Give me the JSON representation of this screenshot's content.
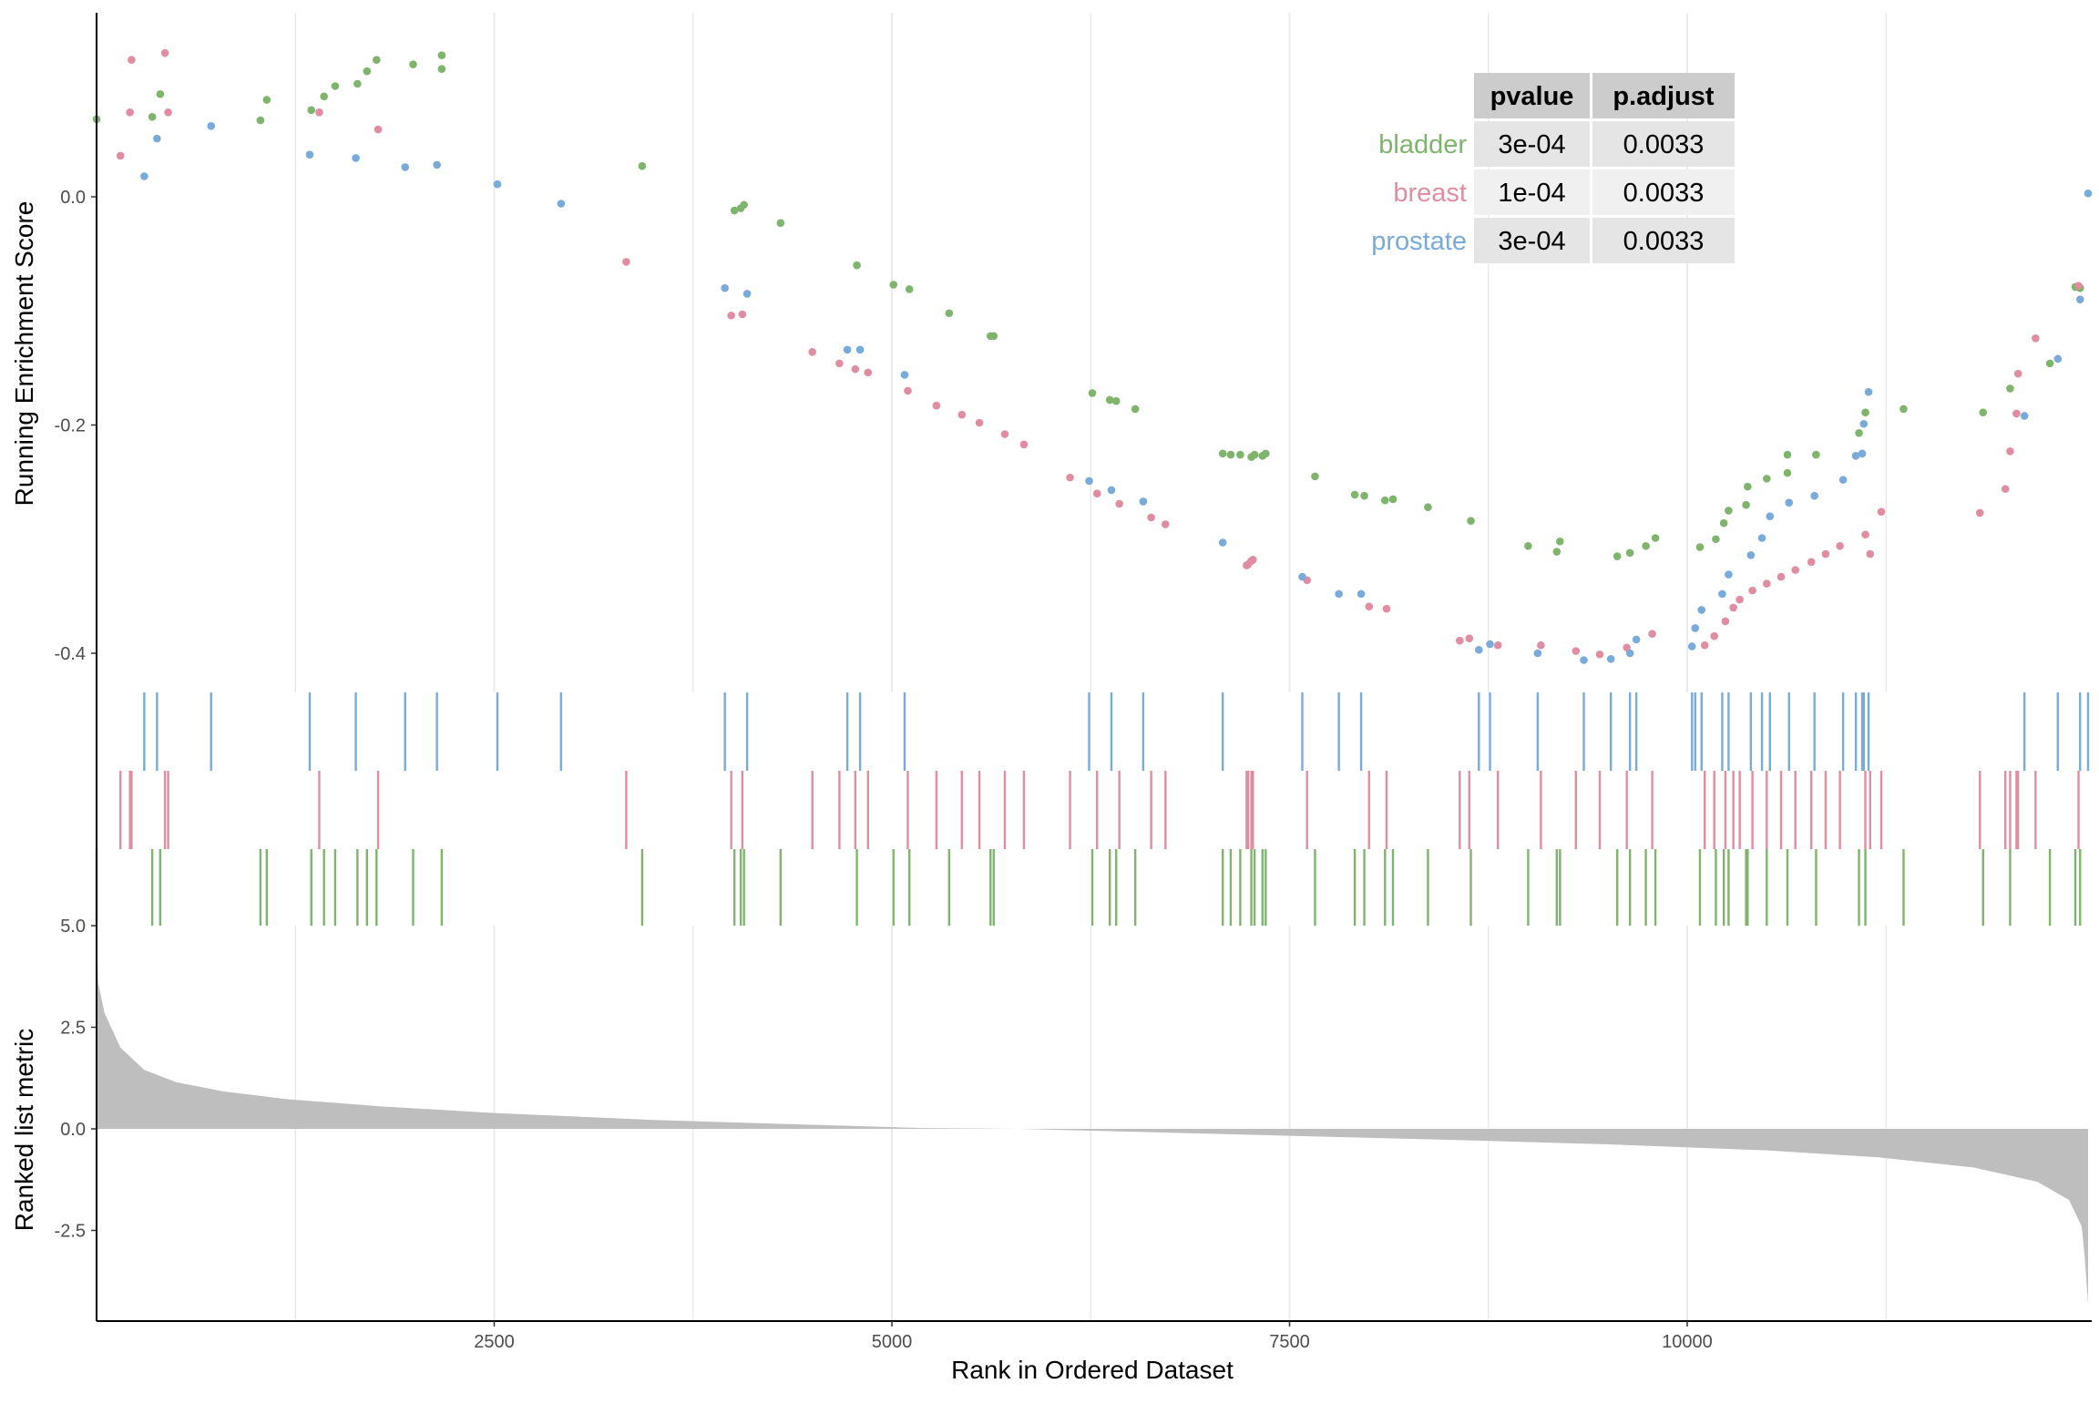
{
  "chart_data": {
    "type": "scatter",
    "colors": {
      "bladder": "#7FB46C",
      "breast": "#E08DA1",
      "prostate": "#78AADA",
      "ranked_fill": "#BEBEBE",
      "grid": "#EBEBEB",
      "table_header": "#CCCCCC",
      "table_row_a": "#E5E5E5",
      "table_row_b": "#F0F0F0"
    },
    "top_panel": {
      "ylabel": "Running Enrichment Score",
      "ylim": [
        -0.43,
        0.16
      ],
      "yticks": [
        {
          "v": 0.0,
          "label": "0.0"
        },
        {
          "v": -0.2,
          "label": "-0.2"
        },
        {
          "v": -0.4,
          "label": "-0.4"
        }
      ],
      "series": [
        {
          "name": "bladder",
          "points": [
            [
              0,
              0.068
            ],
            [
              350,
              0.07
            ],
            [
              400,
              0.09
            ],
            [
              1030,
              0.067
            ],
            [
              1070,
              0.085
            ],
            [
              1350,
              0.076
            ],
            [
              1430,
              0.088
            ],
            [
              1500,
              0.097
            ],
            [
              1640,
              0.099
            ],
            [
              1700,
              0.11
            ],
            [
              1760,
              0.12
            ],
            [
              1990,
              0.116
            ],
            [
              2170,
              0.124
            ],
            [
              2170,
              0.112
            ],
            [
              3430,
              0.027
            ],
            [
              4010,
              -0.012
            ],
            [
              4050,
              -0.01
            ],
            [
              4070,
              -0.007
            ],
            [
              4300,
              -0.023
            ],
            [
              4780,
              -0.06
            ],
            [
              5010,
              -0.077
            ],
            [
              5110,
              -0.081
            ],
            [
              5360,
              -0.102
            ],
            [
              5620,
              -0.122
            ],
            [
              5640,
              -0.122
            ],
            [
              6260,
              -0.172
            ],
            [
              6370,
              -0.178
            ],
            [
              6410,
              -0.179
            ],
            [
              6530,
              -0.186
            ],
            [
              7080,
              -0.225
            ],
            [
              7130,
              -0.226
            ],
            [
              7190,
              -0.226
            ],
            [
              7260,
              -0.228
            ],
            [
              7280,
              -0.226
            ],
            [
              7330,
              -0.227
            ],
            [
              7350,
              -0.225
            ],
            [
              7660,
              -0.245
            ],
            [
              7910,
              -0.261
            ],
            [
              7970,
              -0.262
            ],
            [
              8100,
              -0.266
            ],
            [
              8150,
              -0.265
            ],
            [
              8370,
              -0.272
            ],
            [
              8640,
              -0.284
            ],
            [
              9000,
              -0.306
            ],
            [
              9180,
              -0.311
            ],
            [
              9200,
              -0.302
            ],
            [
              9560,
              -0.315
            ],
            [
              9640,
              -0.312
            ],
            [
              9740,
              -0.306
            ],
            [
              9800,
              -0.299
            ],
            [
              10080,
              -0.307
            ],
            [
              10180,
              -0.3
            ],
            [
              10230,
              -0.286
            ],
            [
              10260,
              -0.275
            ],
            [
              10370,
              -0.27
            ],
            [
              10380,
              -0.254
            ],
            [
              10500,
              -0.247
            ],
            [
              10630,
              -0.242
            ],
            [
              10630,
              -0.226
            ],
            [
              10810,
              -0.226
            ],
            [
              11080,
              -0.207
            ],
            [
              11120,
              -0.189
            ],
            [
              11360,
              -0.186
            ],
            [
              11860,
              -0.189
            ],
            [
              12030,
              -0.168
            ],
            [
              12280,
              -0.146
            ],
            [
              12440,
              -0.079
            ],
            [
              12470,
              -0.08
            ]
          ]
        },
        {
          "name": "breast",
          "points": [
            [
              150,
              0.036
            ],
            [
              210,
              0.074
            ],
            [
              220,
              0.12
            ],
            [
              430,
              0.126
            ],
            [
              450,
              0.074
            ],
            [
              1400,
              0.074
            ],
            [
              1770,
              0.059
            ],
            [
              3330,
              -0.057
            ],
            [
              3990,
              -0.104
            ],
            [
              4060,
              -0.103
            ],
            [
              4500,
              -0.136
            ],
            [
              4670,
              -0.146
            ],
            [
              4770,
              -0.151
            ],
            [
              4850,
              -0.154
            ],
            [
              5100,
              -0.17
            ],
            [
              5280,
              -0.183
            ],
            [
              5440,
              -0.191
            ],
            [
              5550,
              -0.198
            ],
            [
              5710,
              -0.208
            ],
            [
              5830,
              -0.217
            ],
            [
              6120,
              -0.246
            ],
            [
              6290,
              -0.26
            ],
            [
              6430,
              -0.269
            ],
            [
              6630,
              -0.281
            ],
            [
              6720,
              -0.287
            ],
            [
              7230,
              -0.323
            ],
            [
              7240,
              -0.322
            ],
            [
              7260,
              -0.319
            ],
            [
              7270,
              -0.318
            ],
            [
              7610,
              -0.336
            ],
            [
              8000,
              -0.359
            ],
            [
              8110,
              -0.361
            ],
            [
              8570,
              -0.389
            ],
            [
              8630,
              -0.387
            ],
            [
              8810,
              -0.393
            ],
            [
              9080,
              -0.393
            ],
            [
              9300,
              -0.398
            ],
            [
              9450,
              -0.401
            ],
            [
              9620,
              -0.395
            ],
            [
              9780,
              -0.383
            ],
            [
              10110,
              -0.393
            ],
            [
              10170,
              -0.385
            ],
            [
              10240,
              -0.372
            ],
            [
              10290,
              -0.36
            ],
            [
              10330,
              -0.353
            ],
            [
              10410,
              -0.345
            ],
            [
              10500,
              -0.339
            ],
            [
              10590,
              -0.333
            ],
            [
              10680,
              -0.327
            ],
            [
              10780,
              -0.32
            ],
            [
              10870,
              -0.313
            ],
            [
              10960,
              -0.306
            ],
            [
              11120,
              -0.296
            ],
            [
              11150,
              -0.313
            ],
            [
              11220,
              -0.276
            ],
            [
              11840,
              -0.277
            ],
            [
              12000,
              -0.256
            ],
            [
              12030,
              -0.223
            ],
            [
              12070,
              -0.19
            ],
            [
              12080,
              -0.155
            ],
            [
              12190,
              -0.124
            ],
            [
              12460,
              -0.078
            ]
          ]
        },
        {
          "name": "prostate",
          "points": [
            [
              300,
              0.018
            ],
            [
              380,
              0.051
            ],
            [
              720,
              0.062
            ],
            [
              1340,
              0.037
            ],
            [
              1630,
              0.034
            ],
            [
              1940,
              0.026
            ],
            [
              2140,
              0.028
            ],
            [
              2520,
              0.011
            ],
            [
              2920,
              -0.006
            ],
            [
              3950,
              -0.08
            ],
            [
              4090,
              -0.085
            ],
            [
              4720,
              -0.134
            ],
            [
              4800,
              -0.134
            ],
            [
              5080,
              -0.156
            ],
            [
              6240,
              -0.249
            ],
            [
              6380,
              -0.257
            ],
            [
              6580,
              -0.267
            ],
            [
              7080,
              -0.303
            ],
            [
              7580,
              -0.333
            ],
            [
              7810,
              -0.348
            ],
            [
              7950,
              -0.348
            ],
            [
              8690,
              -0.397
            ],
            [
              8760,
              -0.392
            ],
            [
              9060,
              -0.4
            ],
            [
              9350,
              -0.406
            ],
            [
              9520,
              -0.405
            ],
            [
              9640,
              -0.4
            ],
            [
              9680,
              -0.388
            ],
            [
              10030,
              -0.394
            ],
            [
              10050,
              -0.378
            ],
            [
              10090,
              -0.362
            ],
            [
              10220,
              -0.348
            ],
            [
              10260,
              -0.331
            ],
            [
              10400,
              -0.314
            ],
            [
              10470,
              -0.299
            ],
            [
              10520,
              -0.28
            ],
            [
              10640,
              -0.268
            ],
            [
              10800,
              -0.262
            ],
            [
              10980,
              -0.248
            ],
            [
              11060,
              -0.227
            ],
            [
              11100,
              -0.225
            ],
            [
              11110,
              -0.199
            ],
            [
              11140,
              -0.171
            ],
            [
              12120,
              -0.192
            ],
            [
              12330,
              -0.142
            ],
            [
              12470,
              -0.09
            ],
            [
              12520,
              0.003
            ]
          ]
        }
      ]
    },
    "rug": {
      "prostate": [
        300,
        380,
        720,
        1340,
        1630,
        1940,
        2140,
        2520,
        2920,
        3950,
        4090,
        4720,
        4800,
        5080,
        6240,
        6380,
        6580,
        7080,
        7580,
        7810,
        7950,
        8690,
        8760,
        9060,
        9350,
        9520,
        9640,
        9680,
        10030,
        10050,
        10090,
        10220,
        10260,
        10400,
        10470,
        10520,
        10640,
        10800,
        10980,
        11060,
        11100,
        11110,
        11140,
        12120,
        12330,
        12470,
        12520
      ],
      "breast": [
        150,
        210,
        220,
        430,
        450,
        1400,
        1770,
        3330,
        3990,
        4060,
        4500,
        4670,
        4770,
        4850,
        5100,
        5280,
        5440,
        5550,
        5710,
        5830,
        6120,
        6290,
        6430,
        6630,
        6720,
        7230,
        7240,
        7260,
        7270,
        7610,
        8000,
        8110,
        8570,
        8630,
        8810,
        9080,
        9300,
        9450,
        9620,
        9780,
        10110,
        10170,
        10240,
        10290,
        10330,
        10410,
        10500,
        10590,
        10680,
        10780,
        10870,
        10960,
        11120,
        11150,
        11220,
        11840,
        12000,
        12030,
        12070,
        12080,
        12190,
        12460
      ],
      "bladder": [
        0,
        350,
        400,
        1030,
        1070,
        1350,
        1430,
        1500,
        1640,
        1700,
        1760,
        1990,
        2170,
        3430,
        4010,
        4050,
        4070,
        4300,
        4780,
        5010,
        5110,
        5360,
        5620,
        5640,
        6260,
        6370,
        6410,
        6530,
        7080,
        7130,
        7190,
        7260,
        7280,
        7330,
        7350,
        7660,
        7910,
        7970,
        8100,
        8150,
        8370,
        8640,
        9000,
        9180,
        9200,
        9560,
        9640,
        9740,
        9800,
        10080,
        10180,
        10230,
        10260,
        10370,
        10380,
        10500,
        10630,
        10810,
        11080,
        11120,
        11360,
        11860,
        12030,
        12280,
        12440,
        12470
      ]
    },
    "bottom_panel": {
      "type": "area",
      "ylabel": "Ranked list metric",
      "ylim": [
        -4.7,
        5.0
      ],
      "yticks": [
        {
          "v": 5.0,
          "label": "5.0"
        },
        {
          "v": 2.5,
          "label": "2.5"
        },
        {
          "v": 0.0,
          "label": "0.0"
        },
        {
          "v": -2.5,
          "label": "-2.5"
        }
      ],
      "curve": [
        [
          0,
          5.0
        ],
        [
          10,
          3.6
        ],
        [
          50,
          2.85
        ],
        [
          150,
          2.0
        ],
        [
          300,
          1.45
        ],
        [
          500,
          1.15
        ],
        [
          800,
          0.92
        ],
        [
          1200,
          0.73
        ],
        [
          1800,
          0.55
        ],
        [
          2500,
          0.39
        ],
        [
          3500,
          0.22
        ],
        [
          4500,
          0.1
        ],
        [
          5200,
          0.02
        ],
        [
          5800,
          0.0
        ],
        [
          6500,
          -0.07
        ],
        [
          7500,
          -0.17
        ],
        [
          8500,
          -0.27
        ],
        [
          9500,
          -0.38
        ],
        [
          10500,
          -0.53
        ],
        [
          11200,
          -0.7
        ],
        [
          11800,
          -0.95
        ],
        [
          12200,
          -1.3
        ],
        [
          12400,
          -1.75
        ],
        [
          12480,
          -2.4
        ],
        [
          12500,
          -3.2
        ],
        [
          12520,
          -4.3
        ]
      ]
    },
    "x": {
      "label": "Rank in Ordered Dataset",
      "min": 0,
      "max": 12520,
      "ticks": [
        {
          "v": 2500,
          "label": "2500"
        },
        {
          "v": 5000,
          "label": "5000"
        },
        {
          "v": 7500,
          "label": "7500"
        },
        {
          "v": 10000,
          "label": "10000"
        }
      ]
    },
    "table": {
      "headers": [
        "pvalue",
        "p.adjust"
      ],
      "rows": [
        {
          "name": "bladder",
          "pvalue": "3e-04",
          "padjust": "0.0033"
        },
        {
          "name": "breast",
          "pvalue": "1e-04",
          "padjust": "0.0033"
        },
        {
          "name": "prostate",
          "pvalue": "3e-04",
          "padjust": "0.0033"
        }
      ]
    }
  }
}
